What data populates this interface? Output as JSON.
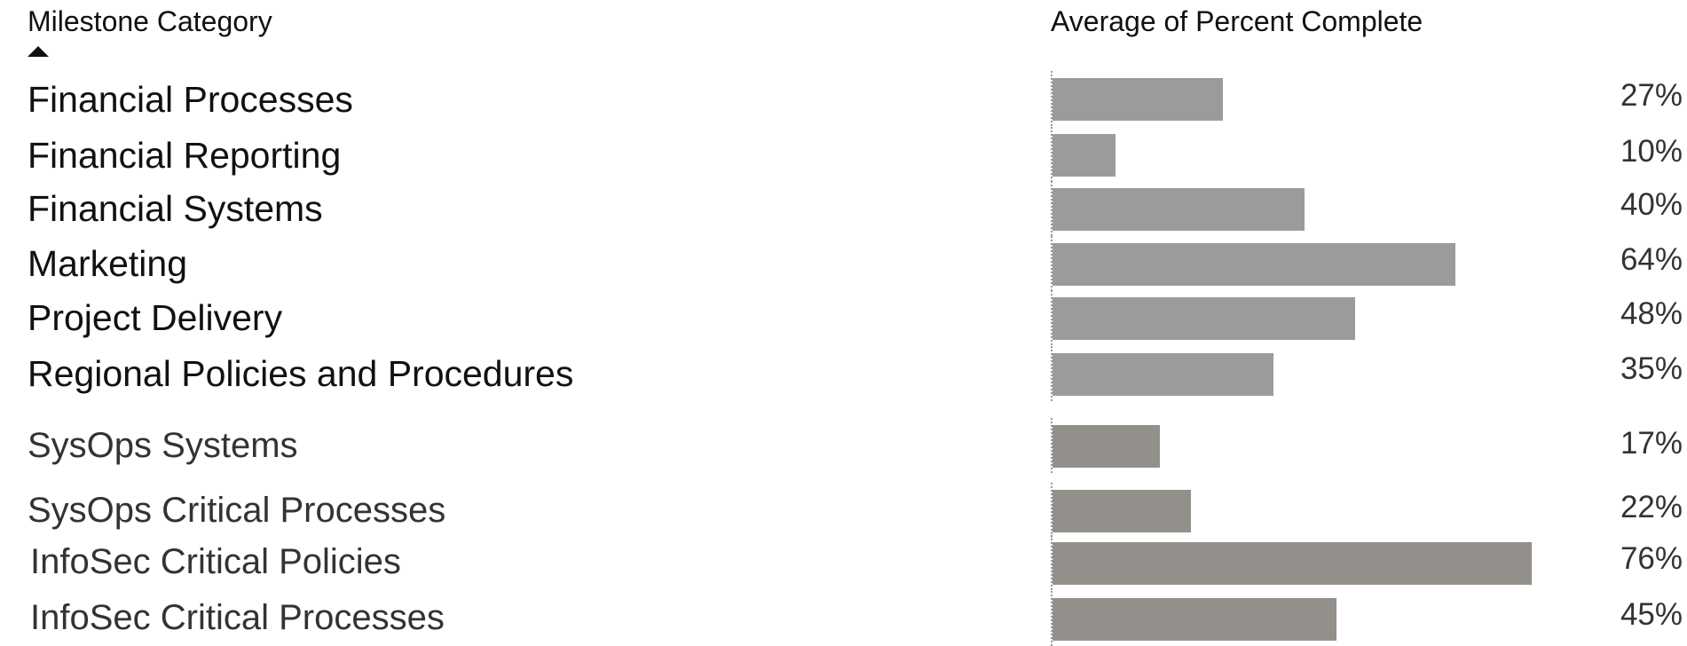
{
  "headers": {
    "category": "Milestone Category",
    "value": "Average of Percent Complete"
  },
  "sort_icon": "sort-ascending-icon",
  "colors": {
    "bar": "#9b9b9b",
    "bar_alt": "#938f8b",
    "text": "#111111"
  },
  "chart_data": {
    "type": "bar",
    "orientation": "horizontal",
    "categories": [
      "Financial Processes",
      "Financial Reporting",
      "Financial Systems",
      "Marketing",
      "Project Delivery",
      "Regional Policies and Procedures",
      "SysOps Systems",
      "SysOps Critical Processes",
      "InfoSec Critical Policies",
      "InfoSec Critical Processes"
    ],
    "values": [
      27,
      10,
      40,
      64,
      48,
      35,
      17,
      22,
      76,
      45
    ],
    "labels": [
      "27%",
      "10%",
      "40%",
      "64%",
      "48%",
      "35%",
      "17%",
      "22%",
      "76%",
      "45%"
    ],
    "xlabel": "Average of Percent Complete",
    "ylabel": "Milestone Category",
    "xlim": [
      0,
      100
    ],
    "grid": false,
    "legend": "none"
  }
}
